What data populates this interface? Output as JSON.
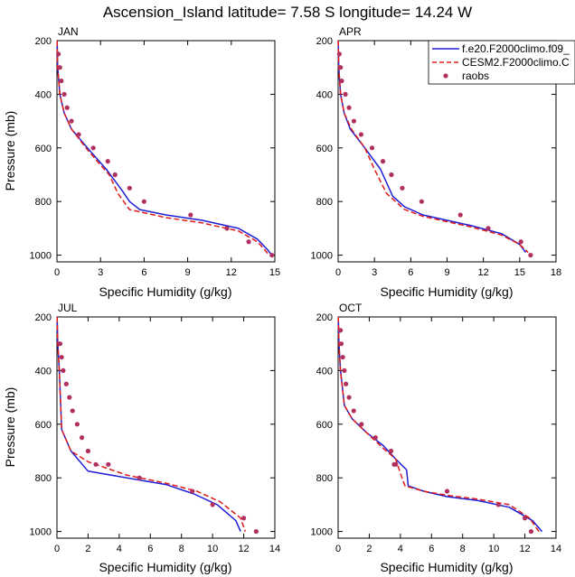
{
  "title": "Ascension_Island  latitude= 7.58 S longitude= 14.24 W",
  "legend": {
    "items": [
      {
        "label": "f.e20.F2000climo.f09_",
        "color": "#1f1fd6",
        "style": "solid"
      },
      {
        "label": "CESM2.F2000climo.C",
        "color": "#e01b1b",
        "style": "dashed"
      },
      {
        "label": "raobs",
        "color": "#b03060",
        "style": "marker"
      }
    ]
  },
  "chart_data": [
    {
      "type": "line",
      "panel": "JAN",
      "xlabel": "Specific Humidity (g/kg)",
      "ylabel": "Pressure (mb)",
      "xlim": [
        0,
        15
      ],
      "ylim": [
        1025,
        200
      ],
      "xticks": [
        0,
        3,
        6,
        9,
        12,
        15
      ],
      "yticks": [
        200,
        400,
        600,
        800,
        1000
      ],
      "series": [
        {
          "name": "f.e20.F2000climo.f09_",
          "color": "#1f1fd6",
          "dash": "solid",
          "x": [
            0.01,
            0.05,
            0.2,
            0.5,
            1.0,
            2.1,
            3.4,
            4.5,
            5.0,
            5.7,
            7.5,
            10.0,
            12.5,
            13.8,
            14.5,
            14.8
          ],
          "y": [
            200,
            300,
            400,
            470,
            530,
            600,
            680,
            760,
            800,
            830,
            850,
            870,
            900,
            940,
            980,
            1000
          ]
        },
        {
          "name": "CESM2.F2000climo.C",
          "color": "#e01b1b",
          "dash": "dashed",
          "x": [
            0.01,
            0.05,
            0.2,
            0.5,
            1.0,
            2.0,
            3.1,
            3.6,
            4.2,
            5.0,
            7.5,
            10.0,
            12.5,
            13.8,
            14.3,
            14.6
          ],
          "y": [
            200,
            300,
            400,
            470,
            530,
            600,
            670,
            700,
            770,
            830,
            860,
            880,
            910,
            950,
            980,
            1000
          ]
        },
        {
          "name": "raobs",
          "color": "#b03060",
          "dash": "marker",
          "x": [
            0.1,
            0.2,
            0.3,
            0.5,
            0.7,
            1.0,
            1.5,
            2.5,
            3.5,
            4.0,
            5.0,
            6.0,
            9.2,
            11.7,
            13.2,
            14.8
          ],
          "y": [
            250,
            300,
            350,
            400,
            450,
            500,
            550,
            600,
            650,
            700,
            750,
            800,
            850,
            900,
            950,
            1000
          ]
        }
      ]
    },
    {
      "type": "line",
      "panel": "APR",
      "xlabel": "Specific Humidity (g/kg)",
      "ylabel": "",
      "xlim": [
        0,
        18
      ],
      "ylim": [
        1025,
        200
      ],
      "xticks": [
        0,
        3,
        6,
        9,
        12,
        15,
        18
      ],
      "yticks": [
        200,
        400,
        600,
        800,
        1000
      ],
      "series": [
        {
          "name": "f.e20.F2000climo.f09_",
          "color": "#1f1fd6",
          "dash": "solid",
          "x": [
            0.01,
            0.05,
            0.2,
            0.5,
            1.0,
            2.2,
            3.5,
            4.5,
            5.5,
            7.0,
            9.0,
            11.0,
            13.5,
            15.0,
            15.5
          ],
          "y": [
            200,
            300,
            400,
            470,
            530,
            600,
            680,
            780,
            820,
            850,
            870,
            890,
            920,
            960,
            990
          ]
        },
        {
          "name": "CESM2.F2000climo.C",
          "color": "#e01b1b",
          "dash": "dashed",
          "x": [
            0.01,
            0.05,
            0.2,
            0.5,
            1.1,
            2.2,
            3.0,
            4.0,
            5.5,
            7.0,
            9.0,
            11.0,
            13.5,
            15.0,
            15.7
          ],
          "y": [
            200,
            300,
            400,
            470,
            530,
            600,
            680,
            770,
            830,
            855,
            875,
            895,
            925,
            960,
            990
          ]
        },
        {
          "name": "raobs",
          "color": "#b03060",
          "dash": "marker",
          "x": [
            0.1,
            0.2,
            0.3,
            0.6,
            0.9,
            1.3,
            1.9,
            2.8,
            3.7,
            4.4,
            5.3,
            6.9,
            10.1,
            12.4,
            15.1,
            15.9
          ],
          "y": [
            250,
            300,
            350,
            400,
            450,
            500,
            550,
            600,
            650,
            700,
            750,
            800,
            850,
            900,
            950,
            1000
          ]
        }
      ]
    },
    {
      "type": "line",
      "panel": "JUL",
      "xlabel": "Specific Humidity (g/kg)",
      "ylabel": "Pressure (mb)",
      "xlim": [
        0,
        14
      ],
      "ylim": [
        1025,
        200
      ],
      "xticks": [
        0,
        2,
        4,
        6,
        8,
        10,
        12,
        14
      ],
      "yticks": [
        200,
        400,
        600,
        800,
        1000
      ],
      "series": [
        {
          "name": "f.e20.F2000climo.f09_",
          "color": "#1f1fd6",
          "dash": "solid",
          "x": [
            0.01,
            0.05,
            0.15,
            0.3,
            0.9,
            2.0,
            4.5,
            7.0,
            8.8,
            10.3,
            11.5,
            11.8
          ],
          "y": [
            200,
            300,
            400,
            620,
            700,
            775,
            800,
            825,
            860,
            900,
            960,
            1000
          ]
        },
        {
          "name": "CESM2.F2000climo.C",
          "color": "#e01b1b",
          "dash": "dashed",
          "x": [
            0.01,
            0.05,
            0.15,
            0.3,
            0.9,
            2.0,
            4.5,
            7.0,
            9.0,
            10.5,
            11.8,
            12.1
          ],
          "y": [
            200,
            300,
            400,
            620,
            700,
            740,
            790,
            820,
            850,
            890,
            950,
            1000
          ]
        },
        {
          "name": "raobs",
          "color": "#b03060",
          "dash": "marker",
          "x": [
            0.2,
            0.3,
            0.4,
            0.6,
            0.8,
            1.0,
            1.3,
            1.6,
            2.0,
            2.5,
            3.3,
            5.3,
            8.7,
            10.0,
            12.0,
            12.8
          ],
          "y": [
            300,
            350,
            400,
            450,
            500,
            550,
            600,
            650,
            700,
            750,
            750,
            800,
            850,
            900,
            950,
            1000
          ]
        }
      ]
    },
    {
      "type": "line",
      "panel": "OCT",
      "xlabel": "Specific Humidity (g/kg)",
      "ylabel": "",
      "xlim": [
        0,
        14
      ],
      "ylim": [
        1025,
        200
      ],
      "xticks": [
        0,
        2,
        4,
        6,
        8,
        10,
        12,
        14
      ],
      "yticks": [
        200,
        400,
        600,
        800,
        1000
      ],
      "series": [
        {
          "name": "f.e20.F2000climo.f09_",
          "color": "#1f1fd6",
          "dash": "solid",
          "x": [
            0.01,
            0.05,
            0.15,
            0.4,
            0.9,
            1.8,
            2.9,
            3.7,
            4.4,
            4.5,
            5.5,
            7.0,
            9.0,
            11.0,
            12.5,
            13.1
          ],
          "y": [
            200,
            300,
            400,
            530,
            580,
            630,
            680,
            730,
            770,
            830,
            850,
            870,
            885,
            910,
            960,
            1000
          ]
        },
        {
          "name": "CESM2.F2000climo.C",
          "color": "#e01b1b",
          "dash": "dashed",
          "x": [
            0.01,
            0.05,
            0.15,
            0.4,
            0.9,
            1.8,
            2.9,
            3.7,
            4.1,
            4.3,
            5.5,
            7.0,
            9.0,
            11.0,
            12.3,
            12.9
          ],
          "y": [
            200,
            300,
            400,
            530,
            580,
            630,
            690,
            730,
            800,
            830,
            850,
            865,
            880,
            900,
            950,
            1000
          ]
        },
        {
          "name": "raobs",
          "color": "#b03060",
          "dash": "marker",
          "x": [
            0.15,
            0.2,
            0.3,
            0.4,
            0.5,
            0.7,
            1.0,
            1.5,
            2.4,
            3.4,
            3.7,
            3.6,
            7.0,
            10.3,
            12.0,
            12.4
          ],
          "y": [
            250,
            300,
            350,
            400,
            450,
            500,
            550,
            600,
            650,
            700,
            750,
            750,
            850,
            900,
            950,
            1000
          ]
        }
      ]
    }
  ]
}
